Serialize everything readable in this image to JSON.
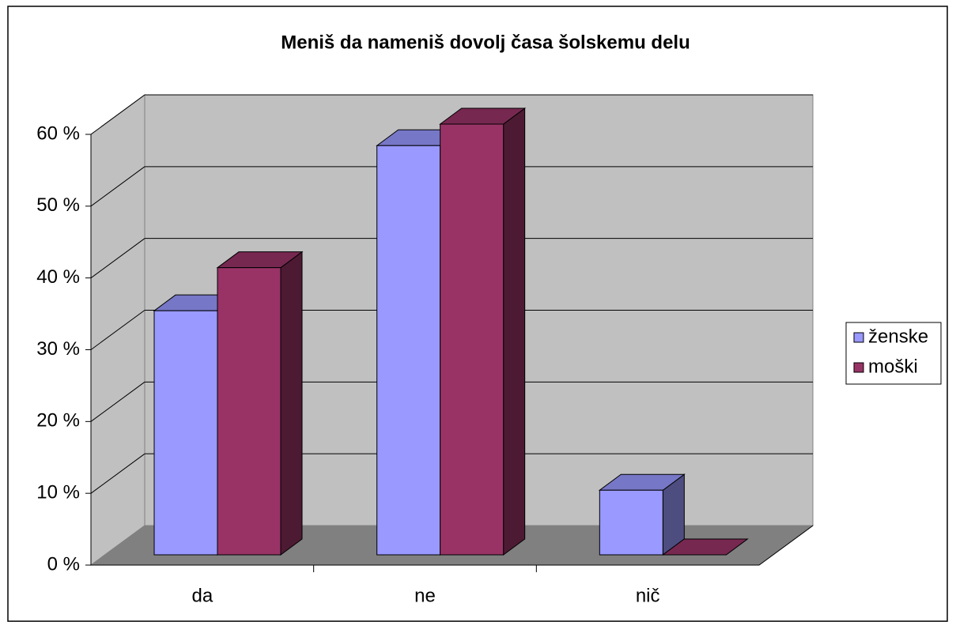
{
  "chart_data": {
    "type": "bar",
    "title": "Meniš da nameniš dovolj časa šolskemu delu",
    "categories": [
      "da",
      "ne",
      "nič"
    ],
    "series": [
      {
        "name": "ženske",
        "color": "#9999ff",
        "values": [
          34,
          57,
          9
        ]
      },
      {
        "name": "moški",
        "color": "#993366",
        "values": [
          40,
          60,
          0
        ]
      }
    ],
    "ylim": [
      0,
      60
    ],
    "yticks": [
      {
        "value": 0,
        "label": "0 %"
      },
      {
        "value": 10,
        "label": "10 %"
      },
      {
        "value": 20,
        "label": "20 %"
      },
      {
        "value": 30,
        "label": "30 %"
      },
      {
        "value": 40,
        "label": "40 %"
      },
      {
        "value": 50,
        "label": "50 %"
      },
      {
        "value": 60,
        "label": "60 %"
      }
    ],
    "grid": true,
    "legend": "right"
  }
}
